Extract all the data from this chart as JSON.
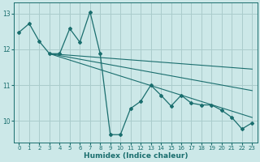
{
  "xlabel": "Humidex (Indice chaleur)",
  "xlim": [
    -0.5,
    23.5
  ],
  "ylim": [
    9.4,
    13.3
  ],
  "yticks": [
    10,
    11,
    12,
    13
  ],
  "xticks": [
    0,
    1,
    2,
    3,
    4,
    5,
    6,
    7,
    8,
    9,
    10,
    11,
    12,
    13,
    14,
    15,
    16,
    17,
    18,
    19,
    20,
    21,
    22,
    23
  ],
  "bg_color": "#cce8e8",
  "grid_color": "#aacccc",
  "line_color": "#1a6e6e",
  "jagged_x": [
    0,
    1,
    2,
    3,
    4,
    5,
    6,
    7,
    8,
    9,
    10,
    11,
    12,
    13,
    14,
    15,
    16,
    17,
    18,
    19,
    20,
    21,
    22,
    23
  ],
  "jagged_y": [
    12.48,
    12.72,
    12.22,
    11.88,
    11.88,
    12.58,
    12.2,
    13.05,
    11.88,
    9.62,
    9.62,
    10.35,
    10.55,
    11.0,
    10.72,
    10.42,
    10.72,
    10.5,
    10.45,
    10.45,
    10.3,
    10.1,
    9.78,
    9.95
  ],
  "trend1_x": [
    3,
    23
  ],
  "trend1_y": [
    11.88,
    11.45
  ],
  "trend2_x": [
    3,
    23
  ],
  "trend2_y": [
    11.88,
    10.85
  ],
  "trend3_x": [
    3,
    23
  ],
  "trend3_y": [
    11.88,
    10.1
  ]
}
